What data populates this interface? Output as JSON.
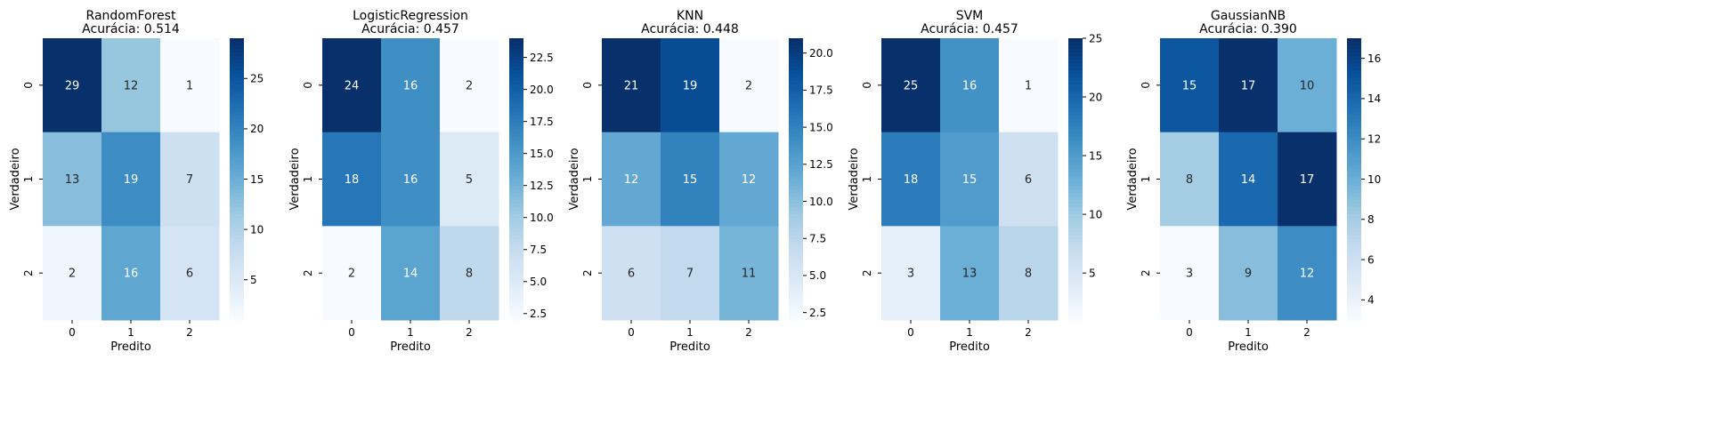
{
  "colors": {
    "scale": [
      "#f7fbff",
      "#deebf7",
      "#c6dbef",
      "#9ecae1",
      "#6baed6",
      "#4292c6",
      "#2171b5",
      "#08519c",
      "#08306b"
    ],
    "text_dark": "#262626",
    "text_light": "#ffffff"
  },
  "chart_data": [
    {
      "type": "heatmap",
      "title": "RandomForest",
      "subtitle": "Acurácia: 0.514",
      "xlabel": "Predito",
      "ylabel": "Verdadeiro",
      "x_ticks": [
        "0",
        "1",
        "2"
      ],
      "y_ticks": [
        "0",
        "1",
        "2"
      ],
      "matrix": [
        [
          29,
          12,
          1
        ],
        [
          13,
          19,
          7
        ],
        [
          2,
          16,
          6
        ]
      ],
      "vmin": 1,
      "vmax": 29,
      "colorbar_ticks": [
        5,
        10,
        15,
        20,
        25
      ],
      "colorbar_tick_labels": [
        "5",
        "10",
        "15",
        "20",
        "25"
      ]
    },
    {
      "type": "heatmap",
      "title": "LogisticRegression",
      "subtitle": "Acurácia: 0.457",
      "xlabel": "Predito",
      "ylabel": "Verdadeiro",
      "x_ticks": [
        "0",
        "1",
        "2"
      ],
      "y_ticks": [
        "0",
        "1",
        "2"
      ],
      "matrix": [
        [
          24,
          16,
          2
        ],
        [
          18,
          16,
          5
        ],
        [
          2,
          14,
          8
        ]
      ],
      "vmin": 2,
      "vmax": 24,
      "colorbar_ticks": [
        2.5,
        5,
        7.5,
        10,
        12.5,
        15,
        17.5,
        20,
        22.5
      ],
      "colorbar_tick_labels": [
        "2.5",
        "5.0",
        "7.5",
        "10.0",
        "12.5",
        "15.0",
        "17.5",
        "20.0",
        "22.5"
      ]
    },
    {
      "type": "heatmap",
      "title": "KNN",
      "subtitle": "Acurácia: 0.448",
      "xlabel": "Predito",
      "ylabel": "Verdadeiro",
      "x_ticks": [
        "0",
        "1",
        "2"
      ],
      "y_ticks": [
        "0",
        "1",
        "2"
      ],
      "matrix": [
        [
          21,
          19,
          2
        ],
        [
          12,
          15,
          12
        ],
        [
          6,
          7,
          11
        ]
      ],
      "vmin": 2,
      "vmax": 21,
      "colorbar_ticks": [
        2.5,
        5,
        7.5,
        10,
        12.5,
        15,
        17.5,
        20
      ],
      "colorbar_tick_labels": [
        "2.5",
        "5.0",
        "7.5",
        "10.0",
        "12.5",
        "15.0",
        "17.5",
        "20.0"
      ]
    },
    {
      "type": "heatmap",
      "title": "SVM",
      "subtitle": "Acurácia: 0.457",
      "xlabel": "Predito",
      "ylabel": "Verdadeiro",
      "x_ticks": [
        "0",
        "1",
        "2"
      ],
      "y_ticks": [
        "0",
        "1",
        "2"
      ],
      "matrix": [
        [
          25,
          16,
          1
        ],
        [
          18,
          15,
          6
        ],
        [
          3,
          13,
          8
        ]
      ],
      "vmin": 1,
      "vmax": 25,
      "colorbar_ticks": [
        5,
        10,
        15,
        20,
        25
      ],
      "colorbar_tick_labels": [
        "5",
        "10",
        "15",
        "20",
        "25"
      ]
    },
    {
      "type": "heatmap",
      "title": "GaussianNB",
      "subtitle": "Acurácia: 0.390",
      "xlabel": "Predito",
      "ylabel": "Verdadeiro",
      "x_ticks": [
        "0",
        "1",
        "2"
      ],
      "y_ticks": [
        "0",
        "1",
        "2"
      ],
      "matrix": [
        [
          15,
          17,
          10
        ],
        [
          8,
          14,
          17
        ],
        [
          3,
          9,
          12
        ]
      ],
      "vmin": 3,
      "vmax": 17,
      "colorbar_ticks": [
        4,
        6,
        8,
        10,
        12,
        14,
        16
      ],
      "colorbar_tick_labels": [
        "4",
        "6",
        "8",
        "10",
        "12",
        "14",
        "16"
      ]
    }
  ]
}
